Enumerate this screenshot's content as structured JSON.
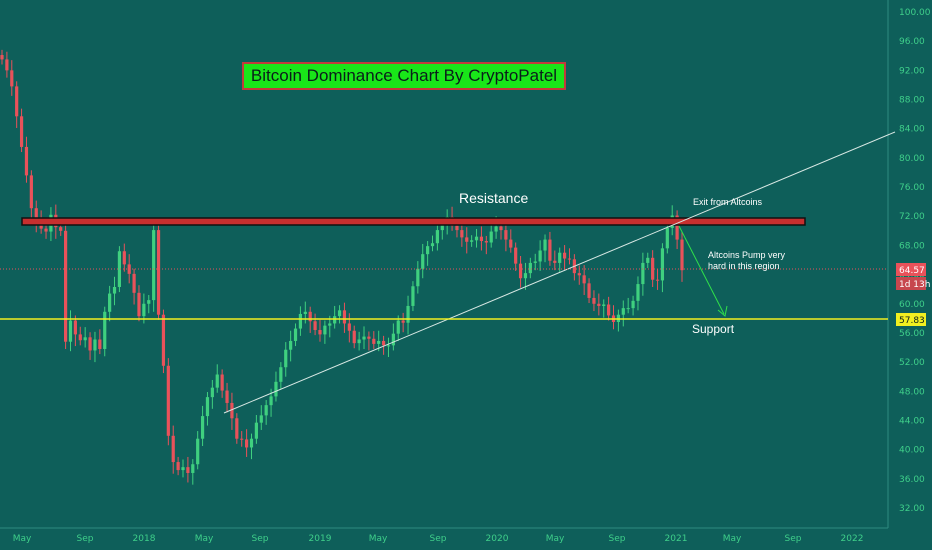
{
  "chart_data": {
    "type": "candlestick",
    "title": "Bitcoin Dominance Chart By CryptoPatel",
    "y_axis": {
      "range": [
        30.0,
        101.0
      ],
      "ticks": [
        "100.00",
        "96.00",
        "92.00",
        "88.00",
        "84.00",
        "80.00",
        "76.00",
        "72.00",
        "68.00",
        "64.00",
        "60.00",
        "56.00",
        "52.00",
        "48.00",
        "44.00",
        "40.00",
        "36.00",
        "32.00"
      ]
    },
    "x_axis": {
      "ticks": [
        "May",
        "Sep",
        "2018",
        "May",
        "Sep",
        "2019",
        "May",
        "Sep",
        "2020",
        "May",
        "Sep",
        "2021",
        "May",
        "Sep",
        "2022"
      ]
    },
    "price_labels": {
      "current_value": "64.57",
      "countdown": "1d 13h",
      "support_value": "57.83"
    },
    "levels": {
      "support": 57.83,
      "resistance": 71.3,
      "current": 64.57
    },
    "series": [
      {
        "values": [
          93.5,
          92.0,
          89.8,
          85.7,
          81.5,
          77.6,
          73.1,
          71.4,
          70.3,
          69.9,
          72.2,
          70.5,
          70.0,
          54.8,
          57.7,
          55.8,
          55.0,
          55.4,
          53.6,
          55.1,
          53.8,
          58.9,
          61.4,
          62.3,
          67.2,
          65.4,
          64.1,
          61.5,
          58.3,
          60.0,
          60.5,
          70.1,
          58.5,
          51.5,
          41.9,
          38.3,
          37.2,
          37.6,
          36.8,
          38.0,
          41.5,
          44.6,
          47.2,
          48.5,
          50.3,
          48.1,
          46.4,
          44.3,
          41.5,
          41.4,
          40.3,
          41.5,
          43.7,
          44.7,
          46.1,
          47.3,
          49.3,
          51.3,
          53.7,
          54.9,
          56.6,
          58.6,
          58.9,
          57.6,
          56.4,
          55.8,
          57.0,
          57.3,
          58.3,
          59.1,
          57.3,
          56.3,
          54.6,
          55.1,
          55.5,
          55.2,
          54.5,
          54.9,
          54.3,
          54.3,
          55.9,
          57.7,
          57.4,
          59.7,
          62.4,
          64.8,
          66.8,
          67.9,
          68.3,
          70.1,
          71.1,
          71.9,
          70.7,
          70.1,
          69.1,
          68.5,
          68.7,
          69.2,
          68.6,
          68.4,
          69.9,
          70.6,
          70.1,
          68.8,
          67.7,
          65.5,
          63.5,
          64.2,
          65.6,
          65.8,
          67.3,
          68.8,
          65.9,
          65.6,
          67.0,
          66.2,
          66.1,
          64.2,
          63.9,
          62.8,
          60.8,
          60.0,
          59.7,
          59.9,
          58.4,
          57.5,
          58.5,
          59.4,
          59.4,
          60.4,
          62.7,
          65.6,
          66.3,
          63.3,
          63.2,
          67.6,
          70.4,
          72.1,
          68.8,
          64.6
        ]
      }
    ]
  },
  "annotations": {
    "resistance": "Resistance",
    "support": "Support",
    "exit": "Exit from Altcoins",
    "pump_line1": "Altcoins Pump very",
    "pump_line2": "hard in this region"
  },
  "colors": {
    "background": "#0e5f5a",
    "up": "#3fd07f",
    "down": "#e8525a",
    "support_line": "#f2ef20",
    "resistance_fill": "#c62f2f",
    "trendline": "#d8e8e4",
    "arrow": "#2fe04a",
    "title_bg": "#19e619",
    "title_border": "#c23b3b",
    "axis_text": "#3fcf8a"
  }
}
